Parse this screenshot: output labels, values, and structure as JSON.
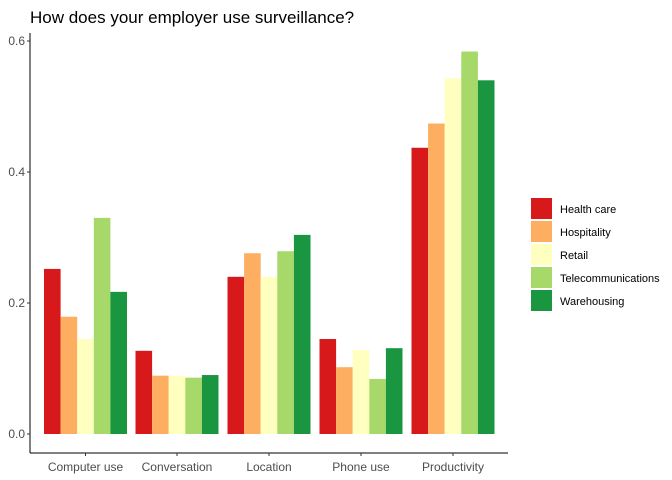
{
  "chart_data": {
    "type": "bar",
    "title": "How does your employer use surveillance?",
    "xlabel": "",
    "ylabel": "",
    "ylim": [
      0,
      0.61
    ],
    "yticks": [
      0.0,
      0.2,
      0.4,
      0.6
    ],
    "ytick_labels": [
      "0.0",
      "0.2",
      "0.4",
      "0.6"
    ],
    "grid": false,
    "legend_position": "right",
    "categories": [
      "Computer use",
      "Conversation",
      "Location",
      "Phone use",
      "Productivity"
    ],
    "series": [
      {
        "name": "Health care",
        "color": "#d7191c",
        "values": [
          0.252,
          0.127,
          0.24,
          0.145,
          0.437
        ]
      },
      {
        "name": "Hospitality",
        "color": "#fdae61",
        "values": [
          0.179,
          0.089,
          0.276,
          0.102,
          0.474
        ]
      },
      {
        "name": "Retail",
        "color": "#ffffbf",
        "values": [
          0.145,
          0.089,
          0.24,
          0.128,
          0.543
        ]
      },
      {
        "name": "Telecommunications",
        "color": "#a6d96a",
        "values": [
          0.33,
          0.086,
          0.279,
          0.084,
          0.584
        ]
      },
      {
        "name": "Warehousing",
        "color": "#1a9641",
        "values": [
          0.217,
          0.09,
          0.304,
          0.131,
          0.54
        ]
      }
    ]
  }
}
